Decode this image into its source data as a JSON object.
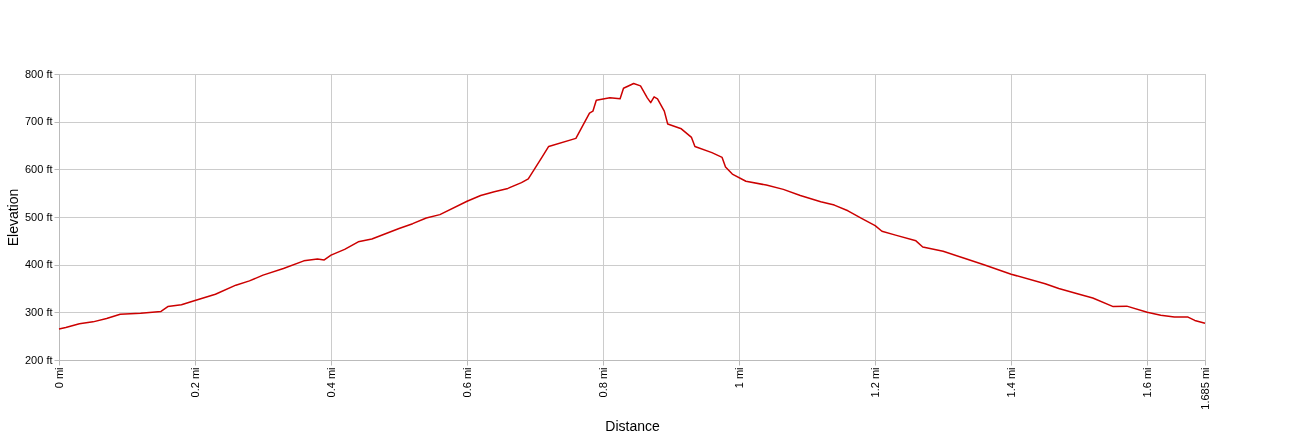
{
  "chart_data": {
    "type": "line",
    "xlabel": "Distance",
    "ylabel": "Elevation",
    "x": [
      0,
      0.01,
      0.03,
      0.05,
      0.07,
      0.09,
      0.12,
      0.15,
      0.16,
      0.18,
      0.2,
      0.23,
      0.26,
      0.28,
      0.3,
      0.33,
      0.36,
      0.38,
      0.39,
      0.4,
      0.42,
      0.44,
      0.46,
      0.48,
      0.5,
      0.52,
      0.54,
      0.56,
      0.6,
      0.62,
      0.64,
      0.66,
      0.68,
      0.69,
      0.71,
      0.72,
      0.76,
      0.78,
      0.785,
      0.79,
      0.81,
      0.825,
      0.83,
      0.845,
      0.855,
      0.865,
      0.87,
      0.875,
      0.88,
      0.89,
      0.895,
      0.915,
      0.93,
      0.935,
      0.96,
      0.975,
      0.98,
      0.99,
      1.01,
      1.04,
      1.065,
      1.09,
      1.12,
      1.14,
      1.16,
      1.18,
      1.2,
      1.21,
      1.23,
      1.26,
      1.27,
      1.3,
      1.33,
      1.36,
      1.4,
      1.45,
      1.47,
      1.5,
      1.52,
      1.55,
      1.57,
      1.6,
      1.62,
      1.64,
      1.66,
      1.67,
      1.685
    ],
    "series": [
      {
        "color": "#cc0000",
        "values": [
          265,
          268,
          276,
          280,
          287,
          296,
          298,
          302,
          312,
          316,
          325,
          338,
          357,
          366,
          378,
          392,
          408,
          412,
          410,
          420,
          432,
          448,
          454,
          465,
          476,
          486,
          498,
          505,
          533,
          545,
          553,
          560,
          572,
          580,
          625,
          648,
          665,
          718,
          722,
          745,
          750,
          748,
          770,
          780,
          775,
          750,
          740,
          752,
          748,
          722,
          695,
          685,
          667,
          648,
          635,
          625,
          605,
          590,
          575,
          567,
          558,
          545,
          532,
          525,
          513,
          497,
          482,
          470,
          462,
          450,
          437,
          428,
          414,
          400,
          380,
          360,
          350,
          338,
          330,
          312,
          313,
          300,
          294,
          290,
          290,
          283,
          277
        ]
      }
    ],
    "xlim": [
      0,
      1.685
    ],
    "xticks": [
      {
        "value": 0,
        "label": "0 mi"
      },
      {
        "value": 0.2,
        "label": "0.2 mi"
      },
      {
        "value": 0.4,
        "label": "0.4 mi"
      },
      {
        "value": 0.6,
        "label": "0.6 mi"
      },
      {
        "value": 0.8,
        "label": "0.8 mi"
      },
      {
        "value": 1,
        "label": "1 mi"
      },
      {
        "value": 1.2,
        "label": "1.2 mi"
      },
      {
        "value": 1.4,
        "label": "1.4 mi"
      },
      {
        "value": 1.6,
        "label": "1.6 mi"
      },
      {
        "value": 1.685,
        "label": "1.685 mi"
      }
    ],
    "ylim": [
      200,
      800
    ],
    "yticks": [
      {
        "value": 200,
        "label": "200 ft"
      },
      {
        "value": 300,
        "label": "300 ft"
      },
      {
        "value": 400,
        "label": "400 ft"
      },
      {
        "value": 500,
        "label": "500 ft"
      },
      {
        "value": 600,
        "label": "600 ft"
      },
      {
        "value": 700,
        "label": "700 ft"
      },
      {
        "value": 800,
        "label": "800 ft"
      }
    ],
    "grid": true,
    "legend": false,
    "marker": "none",
    "line_style": "solid"
  }
}
